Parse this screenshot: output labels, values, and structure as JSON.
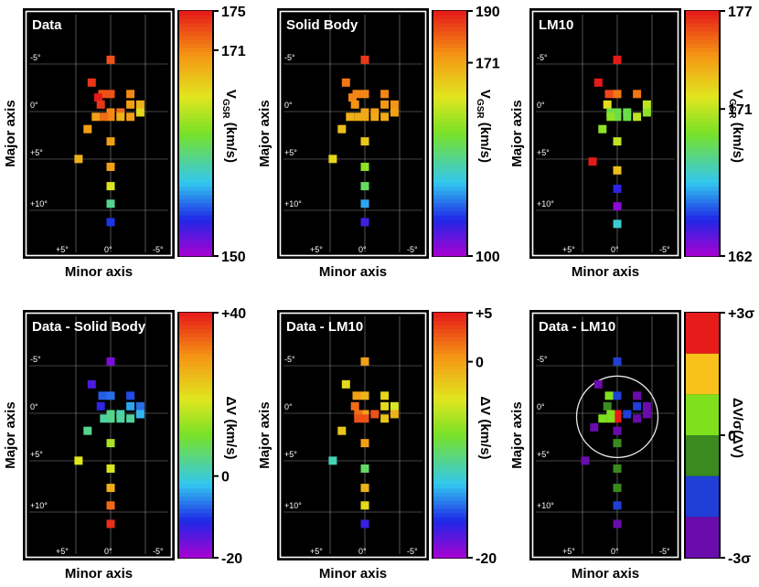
{
  "chart_data": [
    {
      "type": "heatmap",
      "title": "Data",
      "xlabel": "Minor axis",
      "ylabel": "Major axis",
      "x_tick_labels": [
        "+5°",
        "0°",
        "-5°"
      ],
      "y_tick_labels": [
        "-5°",
        "0°",
        "+5°",
        "+10°"
      ],
      "colorbar": {
        "label": "V_GSR (km/s)",
        "label_main": "V",
        "label_sub": "GSR",
        "label_unit": "(km/s)",
        "min": 150,
        "max": 175,
        "ticks": [
          {
            "label": "175",
            "value": 175
          },
          {
            "label": "171",
            "value": 171
          },
          {
            "label": "150",
            "value": 150
          }
        ],
        "scale": "rainbow"
      },
      "points": [
        {
          "minor": 0,
          "major": -5.9,
          "value": 173
        },
        {
          "minor": 2.3,
          "major": -3.3,
          "value": 174
        },
        {
          "minor": -2.4,
          "major": -2.0,
          "value": 171
        },
        {
          "minor": 0,
          "major": -2.0,
          "value": 173
        },
        {
          "minor": 1.0,
          "major": -2.0,
          "value": 173
        },
        {
          "minor": 1.5,
          "major": -1.6,
          "value": 175
        },
        {
          "minor": -3.6,
          "major": -0.8,
          "value": 169
        },
        {
          "minor": -2.4,
          "major": -0.8,
          "value": 170
        },
        {
          "minor": 1.2,
          "major": -0.8,
          "value": 174
        },
        {
          "minor": -3.6,
          "major": 0.1,
          "value": 167
        },
        {
          "minor": -1.2,
          "major": 0.1,
          "value": 172
        },
        {
          "minor": 0,
          "major": 0.1,
          "value": 171
        },
        {
          "minor": -2.4,
          "major": 0.6,
          "value": 170
        },
        {
          "minor": -1.2,
          "major": 0.6,
          "value": 169
        },
        {
          "minor": 0,
          "major": 0.6,
          "value": 171
        },
        {
          "minor": 0.8,
          "major": 0.6,
          "value": 172
        },
        {
          "minor": 1.8,
          "major": 0.6,
          "value": 170
        },
        {
          "minor": 2.8,
          "major": 2.0,
          "value": 170
        },
        {
          "minor": 0,
          "major": 3.4,
          "value": 170
        },
        {
          "minor": 3.9,
          "major": 5.4,
          "value": 169
        },
        {
          "minor": 0,
          "major": 6.3,
          "value": 170
        },
        {
          "minor": 0,
          "major": 8.5,
          "value": 166
        },
        {
          "minor": 0,
          "major": 10.5,
          "value": 160
        },
        {
          "minor": 0,
          "major": 12.6,
          "value": 154
        }
      ]
    },
    {
      "type": "heatmap",
      "title": "Solid Body",
      "xlabel": "Minor axis",
      "ylabel": "Major axis",
      "x_tick_labels": [
        "+5°",
        "0°",
        "-5°"
      ],
      "y_tick_labels": [
        "-5°",
        "0°",
        "+5°",
        "+10°"
      ],
      "colorbar": {
        "label": "V_GSR (km/s)",
        "label_main": "V",
        "label_sub": "GSR",
        "label_unit": "(km/s)",
        "min": 100,
        "max": 190,
        "ticks": [
          {
            "label": "190",
            "value": 190
          },
          {
            "label": "171",
            "value": 171
          },
          {
            "label": "100",
            "value": 100
          }
        ],
        "scale": "rainbow"
      },
      "points": [
        {
          "minor": 0,
          "major": -5.9,
          "value": 186
        },
        {
          "minor": 2.3,
          "major": -3.3,
          "value": 178
        },
        {
          "minor": -2.4,
          "major": -2.0,
          "value": 176
        },
        {
          "minor": 0,
          "major": -2.0,
          "value": 176
        },
        {
          "minor": 1.0,
          "major": -2.0,
          "value": 176
        },
        {
          "minor": 1.5,
          "major": -1.6,
          "value": 176
        },
        {
          "minor": -3.6,
          "major": -0.8,
          "value": 174
        },
        {
          "minor": -2.4,
          "major": -0.8,
          "value": 173
        },
        {
          "minor": 1.2,
          "major": -0.8,
          "value": 174
        },
        {
          "minor": -3.6,
          "major": 0.1,
          "value": 172
        },
        {
          "minor": -1.2,
          "major": 0.1,
          "value": 172
        },
        {
          "minor": 0,
          "major": 0.1,
          "value": 171
        },
        {
          "minor": -2.4,
          "major": 0.6,
          "value": 170
        },
        {
          "minor": -1.2,
          "major": 0.6,
          "value": 170
        },
        {
          "minor": 0,
          "major": 0.6,
          "value": 170
        },
        {
          "minor": 0.8,
          "major": 0.6,
          "value": 170
        },
        {
          "minor": 1.8,
          "major": 0.6,
          "value": 169
        },
        {
          "minor": 2.8,
          "major": 2.0,
          "value": 166
        },
        {
          "minor": 0,
          "major": 3.4,
          "value": 164
        },
        {
          "minor": 3.9,
          "major": 5.4,
          "value": 162
        },
        {
          "minor": 0,
          "major": 6.3,
          "value": 148
        },
        {
          "minor": 0,
          "major": 8.5,
          "value": 140
        },
        {
          "minor": 0,
          "major": 10.5,
          "value": 124
        },
        {
          "minor": 0,
          "major": 12.6,
          "value": 110
        }
      ]
    },
    {
      "type": "heatmap",
      "title": "LM10",
      "xlabel": "Minor axis",
      "ylabel": "Major axis",
      "x_tick_labels": [
        "+5°",
        "0°",
        "-5°"
      ],
      "y_tick_labels": [
        "-5°",
        "0°",
        "+5°",
        "+10°"
      ],
      "colorbar": {
        "label": "V_GSR (km/s)",
        "label_main": "V",
        "label_sub": "GSR",
        "label_unit": "(km/s)",
        "min": 162,
        "max": 177,
        "ticks": [
          {
            "label": "177",
            "value": 177
          },
          {
            "label": "171",
            "value": 171
          },
          {
            "label": "162",
            "value": 162
          }
        ],
        "scale": "rainbow"
      },
      "points": [
        {
          "minor": 0,
          "major": -5.9,
          "value": 177
        },
        {
          "minor": 2.3,
          "major": -3.3,
          "value": 177
        },
        {
          "minor": -2.4,
          "major": -2.0,
          "value": 175
        },
        {
          "minor": 0,
          "major": -2.0,
          "value": 175
        },
        {
          "minor": 1.0,
          "major": -2.0,
          "value": 176
        },
        {
          "minor": -3.6,
          "major": -0.8,
          "value": 171
        },
        {
          "minor": 1.2,
          "major": -0.8,
          "value": 172
        },
        {
          "minor": -3.6,
          "major": 0.1,
          "value": 170
        },
        {
          "minor": -1.2,
          "major": 0.1,
          "value": 169
        },
        {
          "minor": 0,
          "major": 0.1,
          "value": 169
        },
        {
          "minor": 0.8,
          "major": 0.1,
          "value": 169
        },
        {
          "minor": -2.4,
          "major": 0.6,
          "value": 171
        },
        {
          "minor": -1.2,
          "major": 0.6,
          "value": 169
        },
        {
          "minor": 0,
          "major": 0.6,
          "value": 169
        },
        {
          "minor": 0.8,
          "major": 0.6,
          "value": 170
        },
        {
          "minor": 1.8,
          "major": 2.0,
          "value": 170
        },
        {
          "minor": 0,
          "major": 3.4,
          "value": 171
        },
        {
          "minor": 3.0,
          "major": 5.7,
          "value": 177
        },
        {
          "minor": 0,
          "major": 6.7,
          "value": 173
        },
        {
          "minor": 0,
          "major": 8.8,
          "value": 164
        },
        {
          "minor": 0,
          "major": 10.8,
          "value": 162.5
        },
        {
          "minor": 0,
          "major": 12.8,
          "value": 167
        }
      ]
    },
    {
      "type": "heatmap",
      "title": "Data - Solid Body",
      "xlabel": "Minor axis",
      "ylabel": "Major axis",
      "x_tick_labels": [
        "+5°",
        "0°",
        "-5°"
      ],
      "y_tick_labels": [
        "-5°",
        "0°",
        "+5°",
        "+10°"
      ],
      "colorbar": {
        "label": "ΔV (km/s)",
        "label_main": "ΔV",
        "label_sub": "",
        "label_unit": "(km/s)",
        "min": -20,
        "max": 40,
        "ticks": [
          {
            "label": "+40",
            "value": 40
          },
          {
            "label": "0",
            "value": 0
          },
          {
            "label": "-20",
            "value": -20
          }
        ],
        "scale": "rainbow"
      },
      "points": [
        {
          "minor": 0,
          "major": -5.9,
          "value": -17
        },
        {
          "minor": 2.3,
          "major": -3.3,
          "value": -14
        },
        {
          "minor": -2.4,
          "major": -2.0,
          "value": -9
        },
        {
          "minor": 0,
          "major": -2.0,
          "value": -7
        },
        {
          "minor": 1.0,
          "major": -2.0,
          "value": -8
        },
        {
          "minor": -3.6,
          "major": -0.8,
          "value": -7
        },
        {
          "minor": -2.4,
          "major": -0.8,
          "value": -4
        },
        {
          "minor": 1.2,
          "major": -0.8,
          "value": -12
        },
        {
          "minor": -3.6,
          "major": 0.1,
          "value": -3
        },
        {
          "minor": -1.2,
          "major": 0.1,
          "value": 2
        },
        {
          "minor": 0,
          "major": 0.1,
          "value": 4
        },
        {
          "minor": -2.4,
          "major": 0.6,
          "value": 3
        },
        {
          "minor": -1.2,
          "major": 0.6,
          "value": 3
        },
        {
          "minor": 0,
          "major": 0.6,
          "value": 4
        },
        {
          "minor": 0.8,
          "major": 0.6,
          "value": 3
        },
        {
          "minor": 2.8,
          "major": 2.0,
          "value": 4
        },
        {
          "minor": 0,
          "major": 3.4,
          "value": 14
        },
        {
          "minor": 3.9,
          "major": 5.4,
          "value": 19
        },
        {
          "minor": 0,
          "major": 6.3,
          "value": 18
        },
        {
          "minor": 0,
          "major": 8.5,
          "value": 26
        },
        {
          "minor": 0,
          "major": 10.5,
          "value": 33
        },
        {
          "minor": 0,
          "major": 12.6,
          "value": 38
        }
      ]
    },
    {
      "type": "heatmap",
      "title": "Data - LM10",
      "xlabel": "Minor axis",
      "ylabel": "Major axis",
      "x_tick_labels": [
        "+5°",
        "0°",
        "-5°"
      ],
      "y_tick_labels": [
        "-5°",
        "0°",
        "+5°",
        "+10°"
      ],
      "colorbar": {
        "label": "ΔV (km/s)",
        "label_main": "ΔV",
        "label_sub": "",
        "label_unit": "(km/s)",
        "min": -20,
        "max": 5,
        "ticks": [
          {
            "label": "+5",
            "value": 5
          },
          {
            "label": "0",
            "value": 0
          },
          {
            "label": "-20",
            "value": -20
          }
        ],
        "scale": "rainbow"
      },
      "points": [
        {
          "minor": 0,
          "major": -5.9,
          "value": 0
        },
        {
          "minor": 2.3,
          "major": -3.3,
          "value": -3
        },
        {
          "minor": -2.4,
          "major": -2.0,
          "value": -3
        },
        {
          "minor": 0,
          "major": -2.0,
          "value": -1
        },
        {
          "minor": 1.0,
          "major": -2.0,
          "value": 0
        },
        {
          "minor": -3.6,
          "major": -0.8,
          "value": -4
        },
        {
          "minor": -2.4,
          "major": -0.8,
          "value": -3
        },
        {
          "minor": 1.2,
          "major": -0.8,
          "value": 2
        },
        {
          "minor": -3.6,
          "major": 0.1,
          "value": -1
        },
        {
          "minor": -1.2,
          "major": 0.1,
          "value": 3
        },
        {
          "minor": 0,
          "major": 0.1,
          "value": 0
        },
        {
          "minor": 0.8,
          "major": 0.1,
          "value": 2
        },
        {
          "minor": -2.4,
          "major": 0.6,
          "value": -2
        },
        {
          "minor": 0,
          "major": 0.6,
          "value": 3
        },
        {
          "minor": 0.8,
          "major": 0.6,
          "value": 3
        },
        {
          "minor": 2.8,
          "major": 2.0,
          "value": -2
        },
        {
          "minor": 0,
          "major": 3.4,
          "value": 0
        },
        {
          "minor": 3.9,
          "major": 5.4,
          "value": -11
        },
        {
          "minor": 0,
          "major": 6.3,
          "value": -9
        },
        {
          "minor": 0,
          "major": 8.5,
          "value": -1
        },
        {
          "minor": 0,
          "major": 10.5,
          "value": -3
        },
        {
          "minor": 0,
          "major": 12.6,
          "value": -17
        }
      ]
    },
    {
      "type": "heatmap",
      "title": "Data - LM10",
      "xlabel": "Minor axis",
      "ylabel": "Major axis",
      "x_tick_labels": [
        "+5°",
        "0°",
        "-5°"
      ],
      "y_tick_labels": [
        "-5°",
        "0°",
        "+5°",
        "+10°"
      ],
      "colorbar": {
        "label": "ΔV/σ(ΔV)",
        "label_main": "ΔV/σ(ΔV)",
        "label_sub": "",
        "label_unit": "",
        "min": -3,
        "max": 3,
        "ticks": [
          {
            "label": "+3σ",
            "value": 3
          },
          {
            "label": "0",
            "value": 0
          },
          {
            "label": "-3σ",
            "value": -3
          }
        ],
        "scale": "discrete",
        "bins": [
          "#6a0cab",
          "#1f3fd6",
          "#3a8a20",
          "#7fe11e",
          "#f9c21a",
          "#e81b1b"
        ]
      },
      "circle": {
        "center_minor": 0,
        "center_major": 0.4,
        "radius_deg": 4.3
      },
      "points": [
        {
          "minor": 0,
          "major": -5.9,
          "value": -1.5
        },
        {
          "minor": 2.3,
          "major": -3.3,
          "value": -2.5
        },
        {
          "minor": -2.4,
          "major": -2.0,
          "value": -2.5
        },
        {
          "minor": 0,
          "major": -2.0,
          "value": -1.5
        },
        {
          "minor": 1.0,
          "major": -2.0,
          "value": 0.5
        },
        {
          "minor": -3.6,
          "major": -0.8,
          "value": -2.5
        },
        {
          "minor": -2.4,
          "major": -0.8,
          "value": -1.5
        },
        {
          "minor": 1.2,
          "major": -0.8,
          "value": -0.5
        },
        {
          "minor": -3.6,
          "major": 0.1,
          "value": -2.5
        },
        {
          "minor": -1.2,
          "major": 0.1,
          "value": -1.5
        },
        {
          "minor": 0,
          "major": 0.1,
          "value": 2.5
        },
        {
          "minor": 0.8,
          "major": 0.1,
          "value": 0.5
        },
        {
          "minor": -2.4,
          "major": 0.6,
          "value": -2.5
        },
        {
          "minor": 0,
          "major": 0.6,
          "value": 2.5
        },
        {
          "minor": 0.8,
          "major": 0.6,
          "value": 0.5
        },
        {
          "minor": 1.8,
          "major": 0.6,
          "value": 0.5
        },
        {
          "minor": 0,
          "major": 2.0,
          "value": -2.5
        },
        {
          "minor": 2.8,
          "major": 1.6,
          "value": -2.5
        },
        {
          "minor": 0,
          "major": 3.4,
          "value": -0.5
        },
        {
          "minor": 3.9,
          "major": 5.4,
          "value": -2.5
        },
        {
          "minor": 0,
          "major": 6.3,
          "value": -0.5
        },
        {
          "minor": 0,
          "major": 8.5,
          "value": -0.5
        },
        {
          "minor": 0,
          "major": 10.5,
          "value": -1.5
        },
        {
          "minor": 0,
          "major": 12.6,
          "value": -2.5
        }
      ]
    }
  ]
}
